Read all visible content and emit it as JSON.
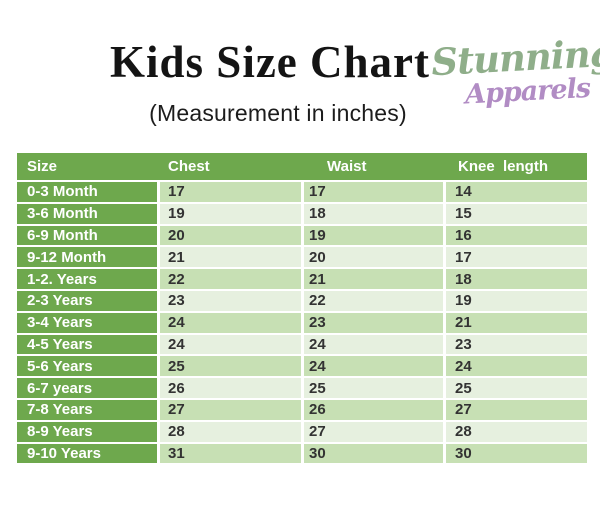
{
  "page": {
    "title": "Kids Size Chart",
    "subtitle": "(Measurement in inches)"
  },
  "brand": {
    "word1": "Stunning",
    "word2": "Apparels",
    "word1_color": "#8FAE8A",
    "word2_color": "#B18CC4"
  },
  "colors": {
    "header_green": "#6EA84D",
    "row_green_dark": "#C7E0B4",
    "row_green_light": "#E6F0DF",
    "header_text": "#FFFFFF",
    "cell_text": "#333333"
  },
  "table": {
    "columns": [
      "Size",
      "Chest",
      "Waist",
      "Knee  length"
    ],
    "rows": [
      {
        "size": "0-3 Month",
        "chest": "17",
        "waist": "17",
        "knee_length": "14"
      },
      {
        "size": "3-6 Month",
        "chest": "19",
        "waist": "18",
        "knee_length": "15"
      },
      {
        "size": "6-9 Month",
        "chest": "20",
        "waist": "19",
        "knee_length": "16"
      },
      {
        "size": "9-12 Month",
        "chest": "21",
        "waist": "20",
        "knee_length": "17"
      },
      {
        "size": "1-2. Years",
        "chest": "22",
        "waist": "21",
        "knee_length": "18"
      },
      {
        "size": "2-3 Years",
        "chest": "23",
        "waist": "22",
        "knee_length": "19"
      },
      {
        "size": "3-4 Years",
        "chest": "24",
        "waist": "23",
        "knee_length": "21"
      },
      {
        "size": "4-5 Years",
        "chest": "24",
        "waist": "24",
        "knee_length": "23"
      },
      {
        "size": "5-6 Years",
        "chest": "25",
        "waist": "24",
        "knee_length": "24"
      },
      {
        "size": "6-7 years",
        "chest": "26",
        "waist": "25",
        "knee_length": "25"
      },
      {
        "size": "7-8 Years",
        "chest": "27",
        "waist": "26",
        "knee_length": "27"
      },
      {
        "size": "8-9 Years",
        "chest": "28",
        "waist": "27",
        "knee_length": "28"
      },
      {
        "size": "9-10 Years",
        "chest": "31",
        "waist": "30",
        "knee_length": "30"
      }
    ]
  }
}
